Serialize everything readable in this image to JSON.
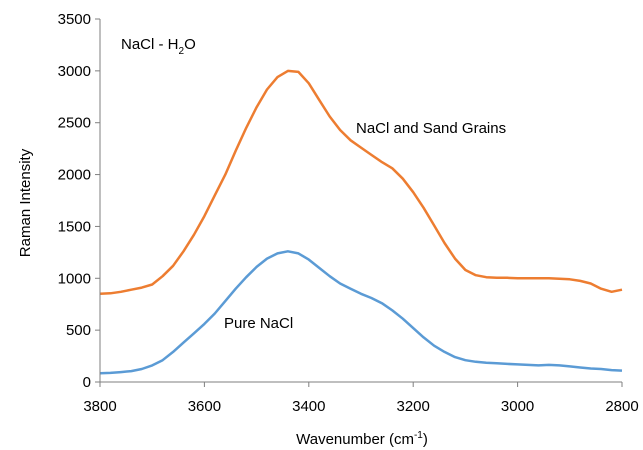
{
  "chart_data": {
    "type": "line",
    "title": "",
    "xlabel": "Wavenumber (cm",
    "xlabel_sup": "-1",
    "xlabel_suffix": ")",
    "ylabel": "Raman Intensity",
    "xlim": [
      3800,
      2800
    ],
    "ylim": [
      0,
      3500
    ],
    "x_reversed": true,
    "grid": false,
    "x_ticks": [
      "3800",
      "3600",
      "3400",
      "3200",
      "3000",
      "2800"
    ],
    "y_ticks": [
      "0",
      "500",
      "1000",
      "1500",
      "2000",
      "2500",
      "3000",
      "3500"
    ],
    "annotations": {
      "panel_prefix": "NaCl - H",
      "panel_sub": "2",
      "panel_suffix": "O",
      "sand_label": "NaCl and Sand Grains",
      "pure_label": "Pure NaCl"
    },
    "series": [
      {
        "color": "#ED7D31",
        "x": [
          3800,
          3780,
          3760,
          3740,
          3720,
          3700,
          3680,
          3660,
          3640,
          3620,
          3600,
          3580,
          3560,
          3540,
          3520,
          3500,
          3480,
          3460,
          3440,
          3420,
          3400,
          3380,
          3360,
          3340,
          3320,
          3300,
          3280,
          3260,
          3240,
          3220,
          3200,
          3180,
          3160,
          3140,
          3120,
          3100,
          3080,
          3060,
          3040,
          3020,
          3000,
          2980,
          2960,
          2940,
          2920,
          2900,
          2880,
          2860,
          2840,
          2820,
          2800
        ],
        "values": [
          850,
          855,
          870,
          890,
          910,
          940,
          1020,
          1120,
          1260,
          1420,
          1600,
          1800,
          2000,
          2230,
          2450,
          2650,
          2820,
          2940,
          3000,
          2990,
          2880,
          2720,
          2560,
          2430,
          2330,
          2260,
          2190,
          2120,
          2060,
          1960,
          1830,
          1680,
          1510,
          1340,
          1190,
          1080,
          1030,
          1010,
          1005,
          1005,
          1000,
          1000,
          1000,
          1000,
          995,
          990,
          975,
          950,
          900,
          870,
          890
        ]
      },
      {
        "color": "#5B9BD5",
        "x": [
          3800,
          3780,
          3760,
          3740,
          3720,
          3700,
          3680,
          3660,
          3640,
          3620,
          3600,
          3580,
          3560,
          3540,
          3520,
          3500,
          3480,
          3460,
          3440,
          3420,
          3400,
          3380,
          3360,
          3340,
          3320,
          3300,
          3280,
          3260,
          3240,
          3220,
          3200,
          3180,
          3160,
          3140,
          3120,
          3100,
          3080,
          3060,
          3040,
          3020,
          3000,
          2980,
          2960,
          2940,
          2920,
          2900,
          2880,
          2860,
          2840,
          2820,
          2800
        ],
        "values": [
          85,
          88,
          95,
          105,
          125,
          160,
          210,
          290,
          380,
          470,
          560,
          660,
          780,
          900,
          1010,
          1110,
          1190,
          1240,
          1260,
          1240,
          1180,
          1100,
          1020,
          950,
          900,
          850,
          810,
          760,
          690,
          610,
          520,
          430,
          350,
          290,
          240,
          210,
          195,
          185,
          180,
          175,
          170,
          165,
          160,
          165,
          160,
          150,
          140,
          130,
          125,
          115,
          110
        ]
      }
    ]
  }
}
